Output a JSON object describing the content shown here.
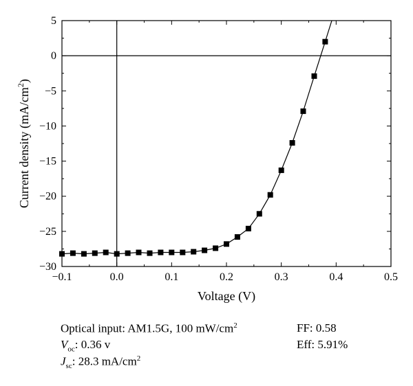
{
  "chart_data": {
    "type": "scatter",
    "title": "",
    "xlabel": "Voltage (V)",
    "ylabel": "Current density (mA/cm2)",
    "xlim": [
      -0.1,
      0.5
    ],
    "ylim": [
      -30,
      5
    ],
    "x_ticks": [
      "−0.1",
      "0.0",
      "0.1",
      "0.2",
      "0.3",
      "0.4",
      "0.5"
    ],
    "y_ticks": [
      "5",
      "0",
      "−5",
      "−10",
      "−15",
      "−20",
      "−25",
      "−30"
    ],
    "grid": false,
    "zero_lines": true,
    "marker": "square",
    "series": [
      {
        "x": [
          -0.1,
          -0.08,
          -0.06,
          -0.04,
          -0.02,
          0.0,
          0.02,
          0.04,
          0.06,
          0.08,
          0.1,
          0.12,
          0.14,
          0.16,
          0.18,
          0.2,
          0.22,
          0.24,
          0.26,
          0.28,
          0.3,
          0.32,
          0.34,
          0.36,
          0.38
        ],
        "y": [
          -28.2,
          -28.1,
          -28.2,
          -28.1,
          -28.0,
          -28.2,
          -28.1,
          -28.0,
          -28.1,
          -28.0,
          -28.0,
          -28.0,
          -27.9,
          -27.7,
          -27.4,
          -26.8,
          -25.8,
          -24.6,
          -22.5,
          -19.8,
          -16.3,
          -12.4,
          -7.9,
          -2.9,
          2.0
        ]
      }
    ],
    "fit_curve_end": {
      "x": 0.392,
      "y": 5
    }
  },
  "info": {
    "optical_input_prefix": "Optical input: AM1.5G, 100 mW/cm",
    "optical_input_sup": "2",
    "voc_label": "V",
    "voc_sub": "oc",
    "voc_value": ": 0.36 v",
    "jsc_label": "J",
    "jsc_sub": "sc",
    "jsc_value": ": 28.3 mA/cm",
    "jsc_sup": "2",
    "ff": "FF: 0.58",
    "eff": "Eff: 5.91%"
  }
}
